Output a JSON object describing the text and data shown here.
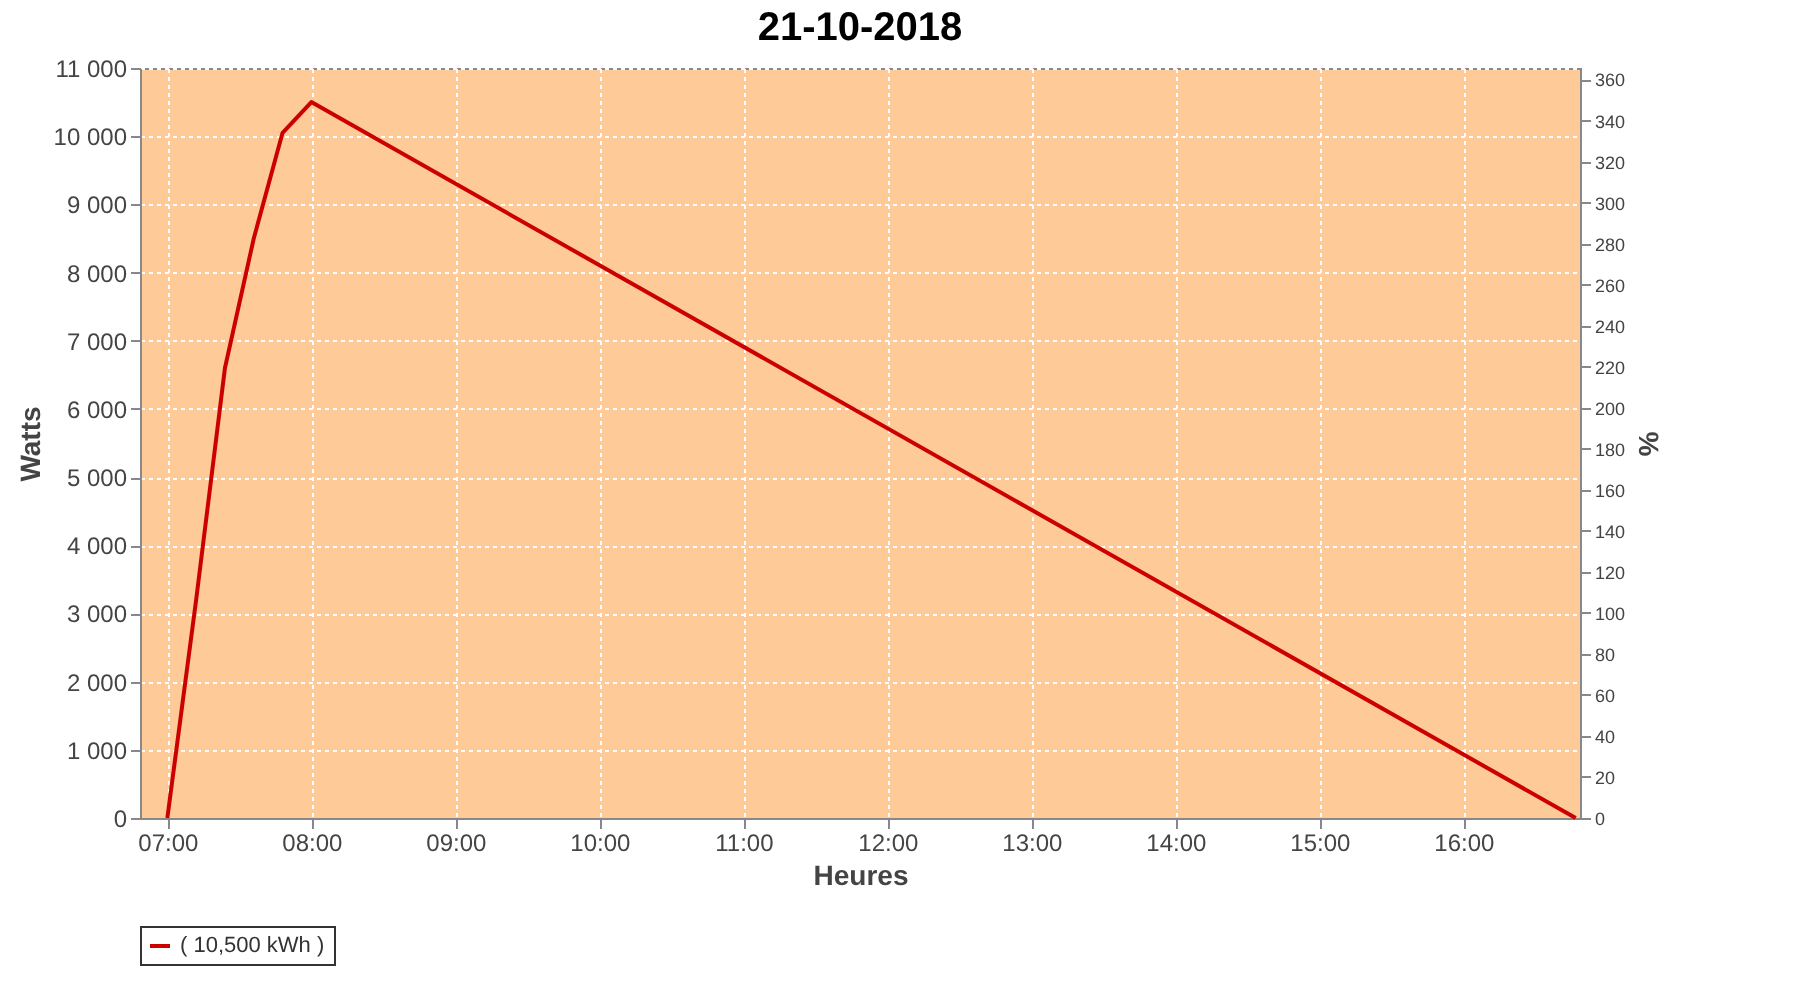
{
  "chart_data": {
    "type": "line",
    "title": "21-10-2018",
    "xlabel": "Heures",
    "ylabel": "Watts",
    "y2label": "%",
    "series": [
      {
        "name": "( 10,500 kWh )",
        "color": "#cc0000",
        "x": [
          7.0,
          7.2,
          7.4,
          7.6,
          7.8,
          8.0,
          16.78
        ],
        "values": [
          0,
          3200,
          6600,
          8500,
          10050,
          10500,
          0
        ]
      }
    ],
    "xlim": [
      6.81,
      16.81
    ],
    "xticks": [
      {
        "value": 7,
        "label": "07:00"
      },
      {
        "value": 8,
        "label": "08:00"
      },
      {
        "value": 9,
        "label": "09:00"
      },
      {
        "value": 10,
        "label": "10:00"
      },
      {
        "value": 11,
        "label": "11:00"
      },
      {
        "value": 12,
        "label": "12:00"
      },
      {
        "value": 13,
        "label": "13:00"
      },
      {
        "value": 14,
        "label": "14:00"
      },
      {
        "value": 15,
        "label": "15:00"
      },
      {
        "value": 16,
        "label": "16:00"
      }
    ],
    "ylim": [
      0,
      11000
    ],
    "yticks": [
      {
        "value": 0,
        "label": "0"
      },
      {
        "value": 1000,
        "label": "1 000"
      },
      {
        "value": 2000,
        "label": "2 000"
      },
      {
        "value": 3000,
        "label": "3 000"
      },
      {
        "value": 4000,
        "label": "4 000"
      },
      {
        "value": 5000,
        "label": "5 000"
      },
      {
        "value": 6000,
        "label": "6 000"
      },
      {
        "value": 7000,
        "label": "7 000"
      },
      {
        "value": 8000,
        "label": "8 000"
      },
      {
        "value": 9000,
        "label": "9 000"
      },
      {
        "value": 10000,
        "label": "10 000"
      },
      {
        "value": 11000,
        "label": "11 000"
      }
    ],
    "y2lim": [
      0,
      365.6
    ],
    "y2ticks": [
      0,
      20,
      40,
      60,
      80,
      100,
      120,
      140,
      160,
      180,
      200,
      220,
      240,
      260,
      280,
      300,
      320,
      340,
      360
    ],
    "grid": true,
    "legend": "bottom",
    "marker": "none",
    "line_style": "solid"
  }
}
